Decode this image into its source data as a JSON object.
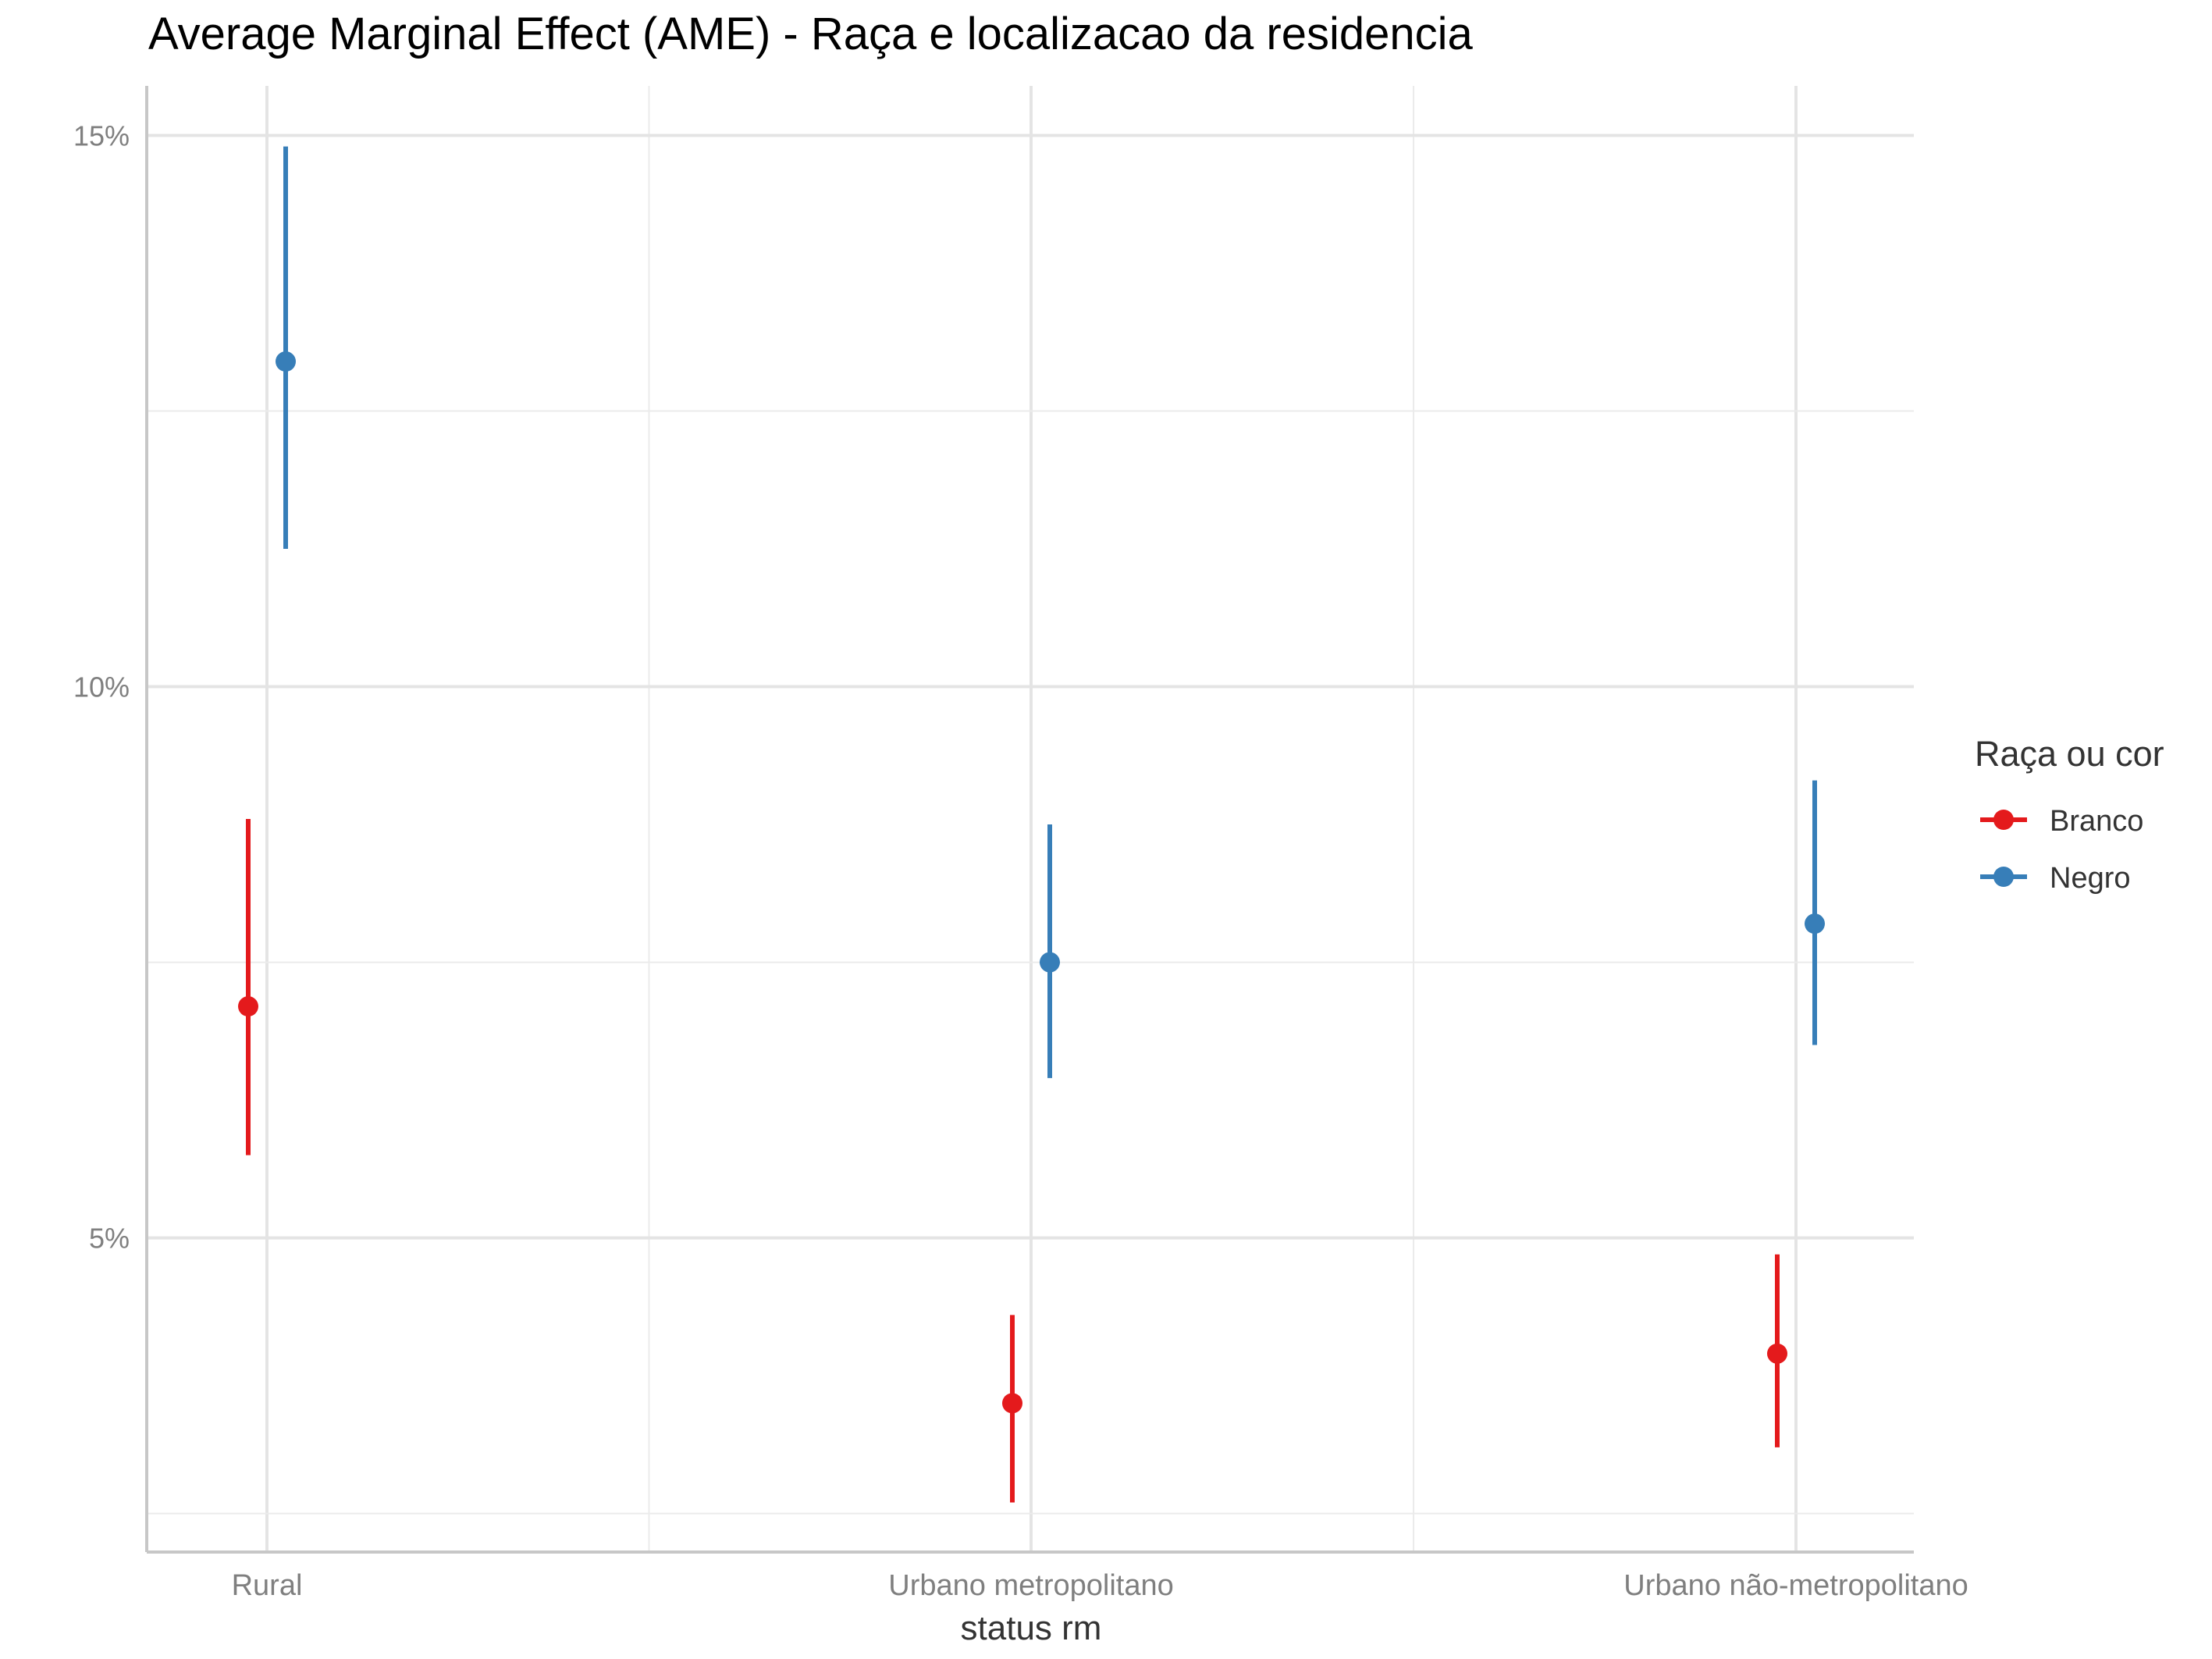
{
  "chart_data": {
    "type": "scatter",
    "title": "Average Marginal Effect (AME) - Raça e localizacao da residencia",
    "xlabel": "status rm",
    "ylabel": "",
    "categories": [
      "Rural",
      "Urbano metropolitano",
      "Urbano não-metropolitano"
    ],
    "ylim": [
      2.15,
      15.45
    ],
    "yticks": [
      5,
      10,
      15
    ],
    "ytick_labels": [
      "5%",
      "10%",
      "15%"
    ],
    "y_unit": "%",
    "grid": true,
    "legend": {
      "title": "Raça ou cor",
      "position": "right"
    },
    "series": [
      {
        "name": "Branco",
        "color": "#e41a1c",
        "values": [
          7.1,
          3.5,
          3.95
        ],
        "lower": [
          5.75,
          2.6,
          3.1
        ],
        "upper": [
          8.8,
          4.3,
          4.85
        ]
      },
      {
        "name": "Negro",
        "color": "#377eb8",
        "values": [
          12.95,
          7.5,
          7.85
        ],
        "lower": [
          11.25,
          6.45,
          6.75
        ],
        "upper": [
          14.9,
          8.75,
          9.15
        ]
      }
    ]
  }
}
